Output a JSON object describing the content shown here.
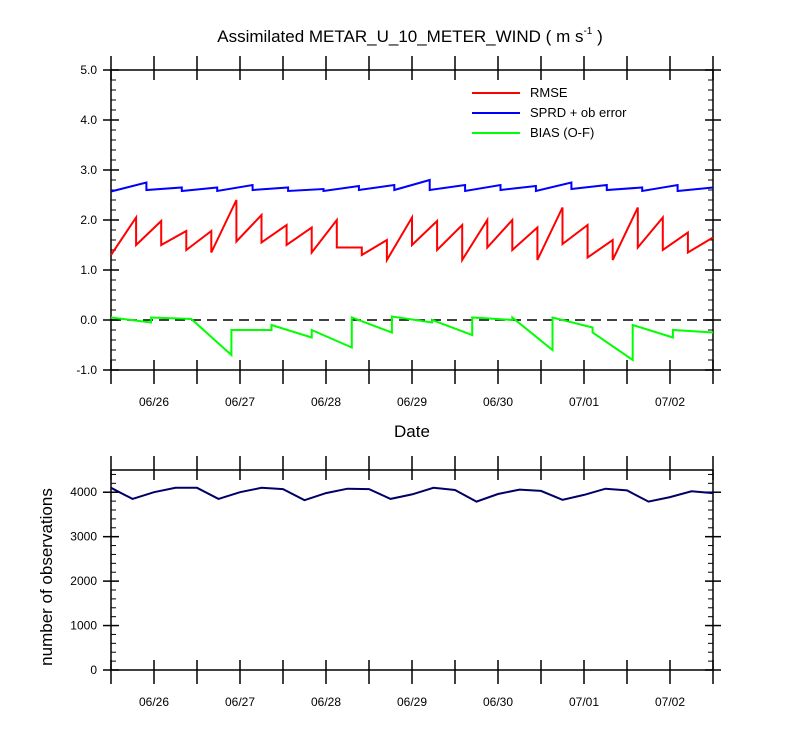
{
  "chart_data": [
    {
      "type": "line",
      "title": "Assimilated METAR_U_10_METER_WIND ( m s",
      "title_superscript": "-1",
      "title_suffix": " )",
      "xlabel": "Date",
      "ylabel": "",
      "x": [
        0,
        0.5,
        1,
        1.5,
        2,
        2.5,
        3,
        3.5,
        4,
        4.5,
        5,
        5.5,
        6,
        6.5,
        7,
        7.5,
        8,
        8.5,
        9,
        9.5,
        10,
        10.5,
        11,
        11.5,
        12,
        12.5,
        13,
        13.5,
        14
      ],
      "xtick_labels": [
        "06/26",
        "06/27",
        "06/28",
        "06/29",
        "06/30",
        "07/01",
        "07/02"
      ],
      "ylim": [
        -1.0,
        5.0
      ],
      "ytick_labels": [
        "5.0",
        "4.0",
        "3.0",
        "2.0",
        "1.0",
        "0.0",
        "-1.0"
      ],
      "reference_line": {
        "y": 0.0,
        "style": "dashed"
      },
      "legend_position": "top-right",
      "series": [
        {
          "name": "RMSE",
          "color": "#ff0000",
          "values": [
            [
              1.3,
              2.05
            ],
            [
              1.5,
              1.98
            ],
            [
              1.5,
              1.78
            ],
            [
              1.4,
              1.78
            ],
            [
              1.35,
              2.4
            ],
            [
              1.57,
              2.1
            ],
            [
              1.55,
              1.9
            ],
            [
              1.5,
              1.85
            ],
            [
              1.35,
              2.0
            ],
            [
              1.45,
              1.45
            ],
            [
              1.3,
              1.6
            ],
            [
              1.2,
              2.05
            ],
            [
              1.5,
              1.98
            ],
            [
              1.4,
              1.9
            ],
            [
              1.2,
              2.0
            ],
            [
              1.45,
              2.0
            ],
            [
              1.4,
              1.85
            ],
            [
              1.2,
              2.25
            ],
            [
              1.52,
              1.9
            ],
            [
              1.25,
              1.6
            ],
            [
              1.2,
              2.25
            ],
            [
              1.45,
              2.05
            ],
            [
              1.4,
              1.75
            ],
            [
              1.35,
              1.65
            ]
          ]
        },
        {
          "name": "SPRD + ob error",
          "color": "#0000ff",
          "values": [
            [
              2.57,
              2.75
            ],
            [
              2.6,
              2.65
            ],
            [
              2.58,
              2.65
            ],
            [
              2.58,
              2.7
            ],
            [
              2.6,
              2.65
            ],
            [
              2.58,
              2.62
            ],
            [
              2.58,
              2.68
            ],
            [
              2.6,
              2.7
            ],
            [
              2.6,
              2.8
            ],
            [
              2.6,
              2.7
            ],
            [
              2.58,
              2.7
            ],
            [
              2.6,
              2.68
            ],
            [
              2.58,
              2.75
            ],
            [
              2.62,
              2.7
            ],
            [
              2.6,
              2.65
            ],
            [
              2.58,
              2.7
            ],
            [
              2.58,
              2.65
            ]
          ]
        },
        {
          "name": "BIAS (O-F)",
          "color": "#00ff00",
          "values": [
            [
              0.05,
              -0.05
            ],
            [
              0.05,
              0.02
            ],
            [
              0.02,
              -0.7
            ],
            [
              -0.2,
              -0.2
            ],
            [
              -0.1,
              -0.35
            ],
            [
              -0.2,
              -0.55
            ],
            [
              0.05,
              -0.25
            ],
            [
              0.07,
              -0.05
            ],
            [
              0.0,
              -0.3
            ],
            [
              0.05,
              0.0
            ],
            [
              0.05,
              -0.6
            ],
            [
              0.05,
              -0.15
            ],
            [
              -0.25,
              -0.8
            ],
            [
              -0.1,
              -0.35
            ],
            [
              -0.2,
              -0.25
            ]
          ]
        }
      ]
    },
    {
      "type": "line",
      "title": "",
      "ylabel": "number of observations",
      "x": [
        0,
        0.5,
        1,
        1.5,
        2,
        2.5,
        3,
        3.5,
        4,
        4.5,
        5,
        5.5,
        6,
        6.5,
        7,
        7.5,
        8,
        8.5,
        9,
        9.5,
        10,
        10.5,
        11,
        11.5,
        12,
        12.5,
        13,
        13.5,
        14
      ],
      "xtick_labels": [
        "06/26",
        "06/27",
        "06/28",
        "06/29",
        "06/30",
        "07/01",
        "07/02"
      ],
      "ylim": [
        0,
        4500
      ],
      "ytick_labels": [
        "4000",
        "3000",
        "2000",
        "1000",
        "0"
      ],
      "series": [
        {
          "color": "#000066",
          "values": [
            4100,
            3850,
            4000,
            4100,
            4100,
            3850,
            4000,
            4100,
            4070,
            3820,
            3980,
            4080,
            4070,
            3850,
            3950,
            4100,
            4050,
            3790,
            3960,
            4060,
            4030,
            3830,
            3940,
            4080,
            4040,
            3790,
            3890,
            4020,
            3980
          ]
        }
      ]
    }
  ]
}
